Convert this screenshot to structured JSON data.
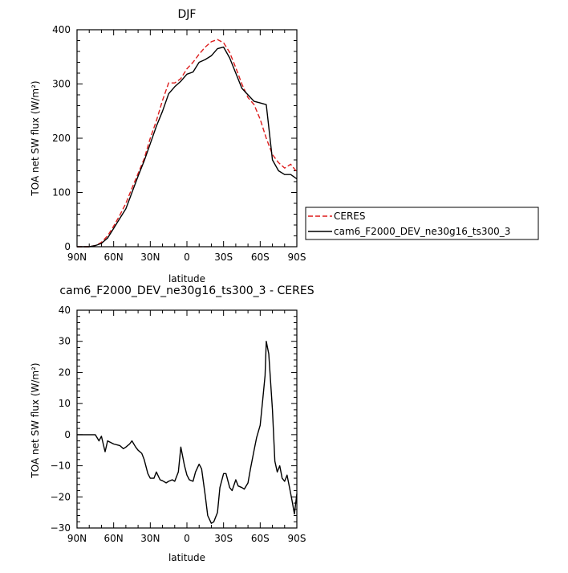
{
  "chart_data": [
    {
      "type": "line",
      "title": "DJF",
      "xlabel": "latitude",
      "ylabel": "TOA net SW flux (W/m²)",
      "xlim": [
        90,
        -90
      ],
      "ylim": [
        0,
        400
      ],
      "xticks": [
        90,
        60,
        30,
        0,
        -30,
        -60,
        -90
      ],
      "xtick_labels": [
        "90N",
        "60N",
        "30N",
        "0",
        "30S",
        "60S",
        "90S"
      ],
      "yticks": [
        0,
        100,
        200,
        300,
        400
      ],
      "ytick_labels": [
        "0",
        "100",
        "200",
        "300",
        "400"
      ],
      "legend_position": "right",
      "series": [
        {
          "name": "CERES",
          "color": "#dd1c1c",
          "style": "dashed",
          "x": [
            90,
            80,
            75,
            70,
            65,
            60,
            55,
            50,
            45,
            40,
            35,
            30,
            25,
            20,
            15,
            10,
            5,
            0,
            -5,
            -10,
            -15,
            -20,
            -25,
            -30,
            -35,
            -40,
            -45,
            -50,
            -55,
            -60,
            -65,
            -70,
            -75,
            -80,
            -85,
            -90
          ],
          "y": [
            0,
            0,
            2,
            8,
            20,
            38,
            58,
            80,
            108,
            135,
            162,
            200,
            232,
            270,
            302,
            302,
            310,
            328,
            340,
            355,
            368,
            378,
            382,
            376,
            358,
            330,
            300,
            275,
            262,
            235,
            200,
            170,
            155,
            145,
            152,
            138
          ]
        },
        {
          "name": "cam6_F2000_DEV_ne30g16_ts300_3",
          "color": "#000000",
          "style": "solid",
          "x": [
            90,
            80,
            75,
            70,
            65,
            60,
            55,
            50,
            45,
            40,
            35,
            30,
            25,
            20,
            15,
            10,
            5,
            0,
            -5,
            -10,
            -15,
            -20,
            -25,
            -30,
            -35,
            -40,
            -45,
            -50,
            -55,
            -60,
            -65,
            -70,
            -75,
            -80,
            -85,
            -90
          ],
          "y": [
            0,
            0,
            2,
            6,
            16,
            34,
            52,
            70,
            100,
            130,
            158,
            190,
            222,
            250,
            282,
            295,
            305,
            318,
            322,
            340,
            345,
            352,
            365,
            368,
            348,
            320,
            292,
            280,
            268,
            265,
            262,
            160,
            140,
            133,
            133,
            125
          ]
        }
      ]
    },
    {
      "type": "line",
      "title": "cam6_F2000_DEV_ne30g16_ts300_3 - CERES",
      "xlabel": "latitude",
      "ylabel": "TOA net SW flux (W/m²)",
      "xlim": [
        90,
        -90
      ],
      "ylim": [
        -30,
        40
      ],
      "xticks": [
        90,
        60,
        30,
        0,
        -30,
        -60,
        -90
      ],
      "xtick_labels": [
        "90N",
        "60N",
        "30N",
        "0",
        "30S",
        "60S",
        "90S"
      ],
      "yticks": [
        -30,
        -20,
        -10,
        0,
        10,
        20,
        30,
        40
      ],
      "ytick_labels": [
        "−30",
        "−20",
        "−10",
        "0",
        "10",
        "20",
        "30",
        "40"
      ],
      "series": [
        {
          "color": "#000000",
          "style": "solid",
          "x": [
            90,
            75,
            72,
            70,
            67,
            65,
            60,
            55,
            52,
            50,
            47,
            45,
            42,
            40,
            37,
            35,
            32,
            30,
            27,
            25,
            22,
            20,
            17,
            15,
            12,
            10,
            7,
            5,
            2,
            0,
            -2,
            -5,
            -7,
            -10,
            -12,
            -15,
            -17,
            -20,
            -22,
            -25,
            -27,
            -30,
            -32,
            -35,
            -37,
            -40,
            -42,
            -45,
            -47,
            -50,
            -52,
            -55,
            -57,
            -60,
            -62,
            -64,
            -65,
            -67,
            -70,
            -72,
            -74,
            -76,
            -78,
            -80,
            -82,
            -84,
            -86,
            -88,
            -90
          ],
          "y": [
            0,
            0,
            -2,
            -0.5,
            -5.5,
            -2,
            -3,
            -3.5,
            -4.5,
            -4,
            -3,
            -2,
            -4,
            -5,
            -6,
            -8,
            -12.5,
            -14,
            -14,
            -12,
            -14.5,
            -14.8,
            -15.5,
            -15,
            -14.5,
            -15,
            -12,
            -4,
            -10,
            -13,
            -14.5,
            -15,
            -12,
            -9.5,
            -11,
            -19.5,
            -26,
            -28.5,
            -28,
            -25,
            -17,
            -12.5,
            -12.5,
            -17,
            -18,
            -14.5,
            -16.5,
            -17,
            -17.5,
            -15.5,
            -11,
            -5,
            -1,
            3,
            11,
            19,
            30,
            26,
            8,
            -8.5,
            -12,
            -10,
            -14,
            -15,
            -13,
            -17,
            -21,
            -25.5,
            -19
          ]
        }
      ]
    }
  ]
}
